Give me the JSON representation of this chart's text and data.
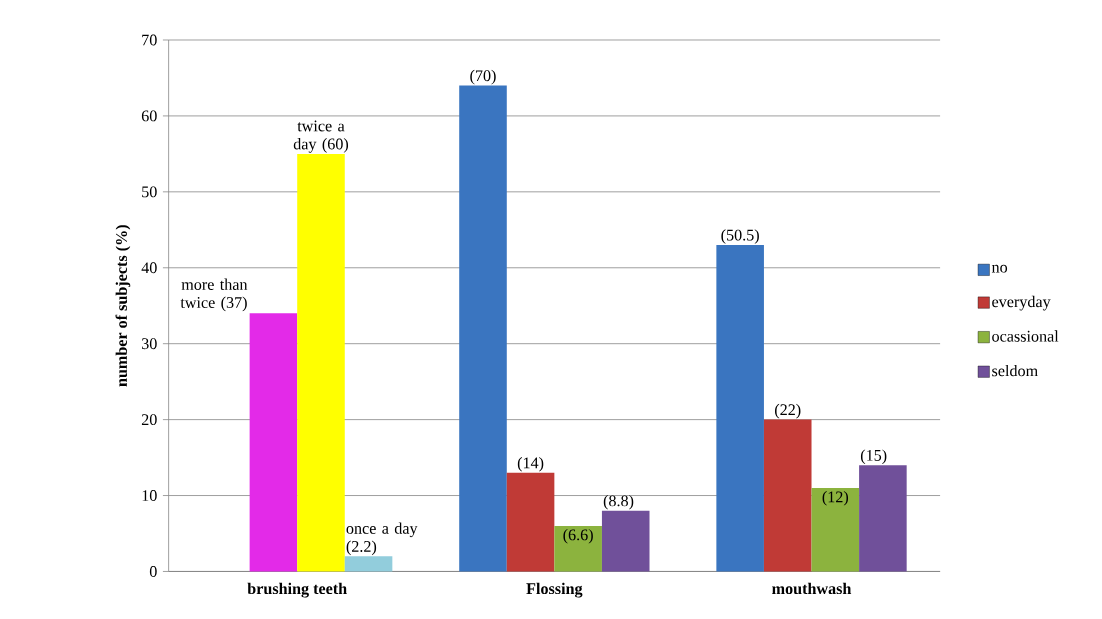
{
  "chart_data": {
    "type": "bar",
    "ylabel": "number of subjects (%)",
    "categories": [
      "brushing teeth",
      "Flossing",
      "mouthwash"
    ],
    "series": [
      {
        "name": "no",
        "color": "#3a75c0",
        "values": [
          null,
          64,
          43
        ]
      },
      {
        "name": "everyday",
        "color": "#c03a36",
        "colors": [
          "#e32ae8",
          "#c03a36",
          "#c03a36"
        ],
        "values": [
          34,
          13,
          20
        ]
      },
      {
        "name": "ocassional",
        "color": "#8cb33e",
        "colors": [
          "#ffff00",
          "#8cb33e",
          "#8cb33e"
        ],
        "values": [
          55,
          6,
          11
        ]
      },
      {
        "name": "seldom",
        "color": "#70509a",
        "colors": [
          "#92cddc",
          "#70509a",
          "#70509a"
        ],
        "values": [
          2,
          8,
          14
        ]
      }
    ],
    "annotations": [
      "(70)",
      "(50.5)",
      "more than twice (37)",
      "(14)",
      "(22)",
      "twice a day (60)",
      "(6.6)",
      "(12)",
      "once a day (2.2)",
      "(8.8)",
      "(15)"
    ],
    "ylim": [
      0,
      70
    ],
    "yticks": [
      0,
      10,
      20,
      30,
      40,
      50,
      60,
      70
    ],
    "grid": "y",
    "legend": "right"
  }
}
